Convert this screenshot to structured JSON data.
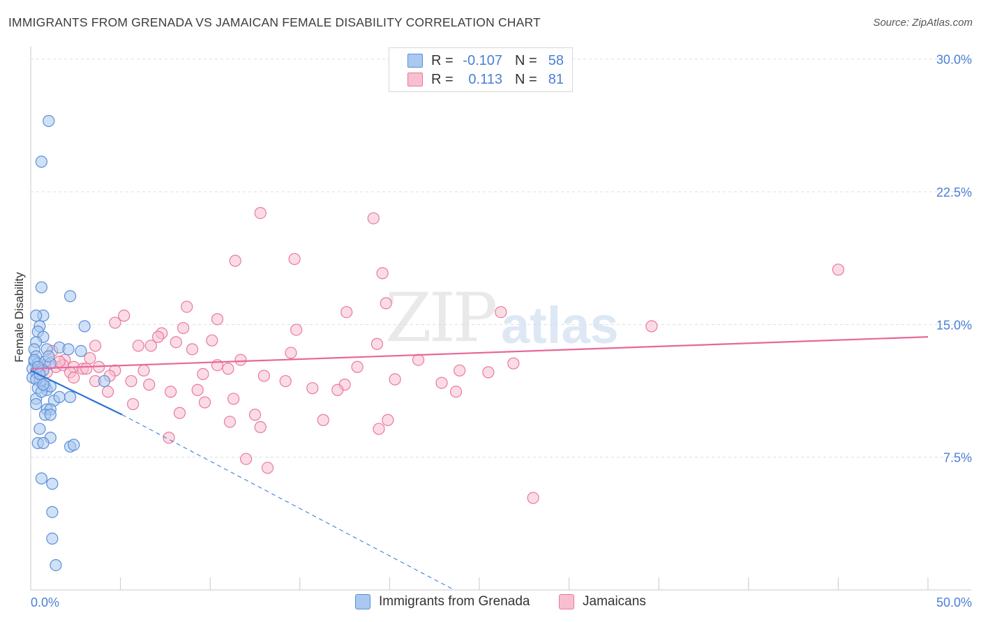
{
  "title": "IMMIGRANTS FROM GRENADA VS JAMAICAN FEMALE DISABILITY CORRELATION CHART",
  "source": "Source: ZipAtlas.com",
  "watermark": {
    "zip": "ZIP",
    "atlas": "atlas"
  },
  "colors": {
    "blue": "#5b8fd6",
    "blue_fill": "#aac8f0",
    "blue_line": "#2c72d6",
    "pink": "#e8799e",
    "pink_fill": "#f7bfd0",
    "pink_line": "#e8669a",
    "axis_label": "#4a7fd4",
    "grid": "#dddddd"
  },
  "legend": {
    "rows": [
      {
        "r_label": "R =",
        "r_value": "-0.107",
        "n_label": "N =",
        "n_value": "58",
        "color": "#aac8f0",
        "border": "#5b8fd6"
      },
      {
        "r_label": "R =",
        "r_value": "0.113",
        "n_label": "N =",
        "n_value": "81",
        "color": "#f7bfd0",
        "border": "#e8799e"
      }
    ]
  },
  "bottom_legend": [
    {
      "label": "Immigrants from Grenada",
      "color": "#aac8f0",
      "border": "#5b8fd6"
    },
    {
      "label": "Jamaicans",
      "color": "#f7bfd0",
      "border": "#e8799e"
    }
  ],
  "chart_data": {
    "type": "scatter",
    "title": "IMMIGRANTS FROM GRENADA VS JAMAICAN FEMALE DISABILITY CORRELATION CHART",
    "xlabel": "",
    "ylabel": "Female Disability",
    "xlim": [
      0,
      50
    ],
    "ylim": [
      0,
      30.5
    ],
    "x_tick_labels": [
      "0.0%",
      "50.0%"
    ],
    "y_ticks": [
      7.5,
      15.0,
      22.5,
      30.0
    ],
    "y_tick_labels": [
      "7.5%",
      "15.0%",
      "22.5%",
      "30.0%"
    ],
    "grid": true,
    "series": [
      {
        "name": "Immigrants from Grenada",
        "R": -0.107,
        "N": 58,
        "trend": {
          "x0": 0,
          "y0": 12.4,
          "x1": 5.1,
          "y1": 9.9,
          "dash_x1": 23.6,
          "dash_y1": 0
        },
        "points": [
          [
            1.0,
            26.5
          ],
          [
            0.6,
            24.2
          ],
          [
            0.6,
            17.1
          ],
          [
            2.2,
            16.6
          ],
          [
            0.7,
            15.5
          ],
          [
            0.3,
            15.5
          ],
          [
            0.5,
            14.9
          ],
          [
            3.0,
            14.9
          ],
          [
            0.4,
            14.6
          ],
          [
            0.7,
            14.3
          ],
          [
            0.3,
            14.0
          ],
          [
            0.2,
            13.6
          ],
          [
            0.9,
            13.6
          ],
          [
            1.6,
            13.7
          ],
          [
            2.1,
            13.6
          ],
          [
            2.8,
            13.5
          ],
          [
            0.3,
            13.2
          ],
          [
            0.2,
            12.9
          ],
          [
            0.4,
            12.8
          ],
          [
            0.8,
            12.9
          ],
          [
            1.1,
            12.8
          ],
          [
            0.1,
            12.5
          ],
          [
            0.3,
            12.3
          ],
          [
            0.7,
            12.4
          ],
          [
            0.1,
            12.0
          ],
          [
            0.5,
            11.8
          ],
          [
            0.3,
            11.9
          ],
          [
            4.1,
            11.8
          ],
          [
            0.4,
            11.4
          ],
          [
            0.8,
            11.5
          ],
          [
            0.9,
            11.3
          ],
          [
            1.1,
            11.5
          ],
          [
            0.3,
            10.8
          ],
          [
            1.3,
            10.7
          ],
          [
            1.6,
            10.9
          ],
          [
            2.2,
            10.9
          ],
          [
            0.9,
            10.2
          ],
          [
            1.1,
            10.2
          ],
          [
            0.8,
            9.9
          ],
          [
            1.1,
            9.9
          ],
          [
            0.5,
            9.1
          ],
          [
            1.1,
            8.6
          ],
          [
            0.4,
            8.3
          ],
          [
            0.7,
            8.3
          ],
          [
            2.2,
            8.1
          ],
          [
            2.4,
            8.2
          ],
          [
            0.6,
            6.3
          ],
          [
            1.2,
            6.0
          ],
          [
            1.2,
            4.4
          ],
          [
            1.2,
            2.9
          ],
          [
            1.4,
            1.4
          ],
          [
            0.6,
            11.2
          ],
          [
            0.2,
            13.0
          ],
          [
            0.4,
            12.6
          ],
          [
            1.0,
            13.2
          ],
          [
            0.5,
            12.2
          ],
          [
            0.7,
            11.6
          ],
          [
            0.3,
            10.5
          ]
        ]
      },
      {
        "name": "Jamaicans",
        "R": 0.113,
        "N": 81,
        "trend": {
          "x0": 0,
          "y0": 12.5,
          "x1": 50,
          "y1": 14.3
        },
        "points": [
          [
            12.8,
            21.3
          ],
          [
            19.1,
            21.0
          ],
          [
            11.4,
            18.6
          ],
          [
            14.7,
            18.7
          ],
          [
            19.6,
            17.9
          ],
          [
            45.0,
            18.1
          ],
          [
            8.7,
            16.0
          ],
          [
            17.6,
            15.7
          ],
          [
            19.8,
            16.2
          ],
          [
            26.2,
            15.7
          ],
          [
            5.2,
            15.5
          ],
          [
            10.4,
            15.3
          ],
          [
            4.7,
            15.1
          ],
          [
            8.5,
            14.8
          ],
          [
            7.3,
            14.5
          ],
          [
            14.8,
            14.7
          ],
          [
            7.1,
            14.3
          ],
          [
            34.6,
            14.9
          ],
          [
            3.6,
            13.8
          ],
          [
            6.0,
            13.8
          ],
          [
            6.7,
            13.8
          ],
          [
            8.1,
            14.0
          ],
          [
            9.0,
            13.6
          ],
          [
            10.1,
            14.1
          ],
          [
            19.3,
            13.9
          ],
          [
            14.5,
            13.4
          ],
          [
            1.9,
            13.0
          ],
          [
            3.3,
            13.1
          ],
          [
            11.7,
            13.0
          ],
          [
            21.6,
            13.0
          ],
          [
            26.9,
            12.8
          ],
          [
            0.8,
            12.7
          ],
          [
            1.4,
            12.6
          ],
          [
            1.8,
            12.7
          ],
          [
            2.4,
            12.6
          ],
          [
            2.9,
            12.5
          ],
          [
            3.1,
            12.5
          ],
          [
            2.2,
            12.3
          ],
          [
            4.7,
            12.4
          ],
          [
            6.3,
            12.4
          ],
          [
            10.4,
            12.7
          ],
          [
            11.0,
            12.5
          ],
          [
            23.9,
            12.4
          ],
          [
            2.4,
            12.0
          ],
          [
            4.4,
            12.1
          ],
          [
            5.6,
            11.8
          ],
          [
            0.9,
            12.3
          ],
          [
            3.6,
            11.8
          ],
          [
            6.6,
            11.6
          ],
          [
            14.2,
            11.8
          ],
          [
            17.5,
            11.6
          ],
          [
            20.3,
            11.9
          ],
          [
            22.9,
            11.7
          ],
          [
            15.7,
            11.4
          ],
          [
            17.1,
            11.3
          ],
          [
            7.8,
            11.2
          ],
          [
            9.3,
            11.3
          ],
          [
            4.3,
            11.2
          ],
          [
            23.7,
            11.2
          ],
          [
            11.3,
            10.8
          ],
          [
            9.7,
            10.6
          ],
          [
            5.7,
            10.5
          ],
          [
            8.3,
            10.0
          ],
          [
            12.5,
            9.9
          ],
          [
            16.3,
            9.6
          ],
          [
            19.9,
            9.6
          ],
          [
            11.1,
            9.5
          ],
          [
            12.8,
            9.2
          ],
          [
            19.4,
            9.1
          ],
          [
            7.7,
            8.6
          ],
          [
            12.0,
            7.4
          ],
          [
            13.2,
            6.9
          ],
          [
            28.0,
            5.2
          ],
          [
            1.2,
            13.5
          ],
          [
            1.6,
            12.9
          ],
          [
            0.5,
            12.2
          ],
          [
            3.8,
            12.6
          ],
          [
            9.6,
            12.2
          ],
          [
            18.2,
            12.6
          ],
          [
            25.5,
            12.3
          ],
          [
            13.0,
            12.1
          ]
        ]
      }
    ]
  }
}
